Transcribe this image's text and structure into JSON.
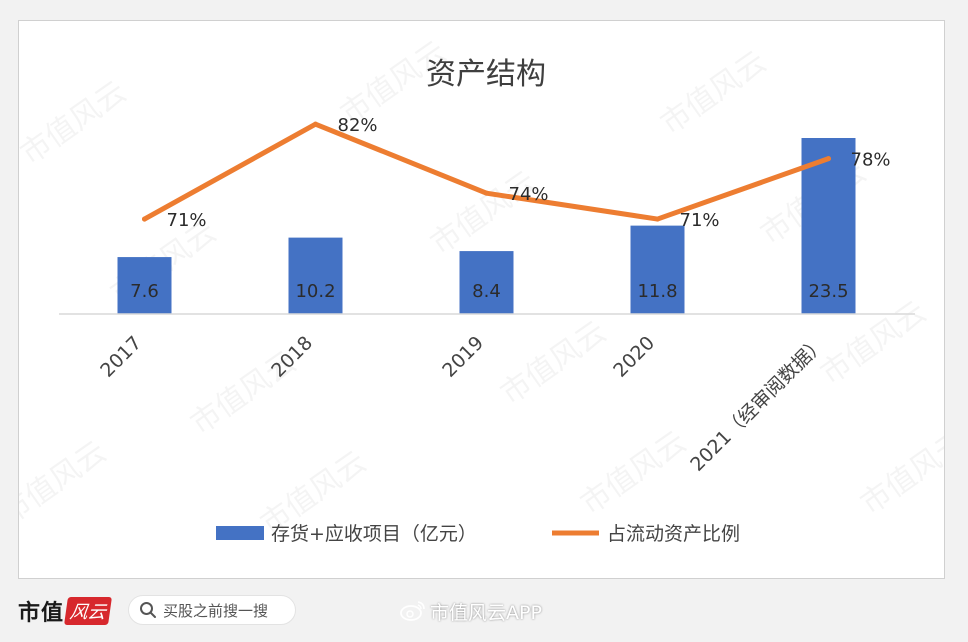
{
  "chart_data": {
    "type": "bar+line",
    "title": "资产结构",
    "categories": [
      "2017",
      "2018",
      "2019",
      "2020",
      "2021（经审阅数据）"
    ],
    "series": [
      {
        "name": "存货+应收项目（亿元）",
        "type": "bar",
        "color": "#4472c4",
        "values": [
          7.6,
          10.2,
          8.4,
          11.8,
          23.5
        ],
        "labels": [
          "7.6",
          "10.2",
          "8.4",
          "11.8",
          "23.5"
        ],
        "ylim": [
          0,
          23.5
        ]
      },
      {
        "name": "占流动资产比例",
        "type": "line",
        "color": "#ed7d31",
        "values": [
          71,
          82,
          74,
          71,
          78
        ],
        "labels": [
          "71%",
          "82%",
          "74%",
          "71%",
          "78%"
        ],
        "ylim": [
          60,
          87
        ]
      }
    ],
    "legend_position": "bottom",
    "grid": false
  },
  "watermark": "市值风云",
  "footer": {
    "brand_text": "市值",
    "brand_seal": "风云",
    "search_placeholder": "买股之前搜一搜",
    "weibo_label": "市值风云APP"
  }
}
